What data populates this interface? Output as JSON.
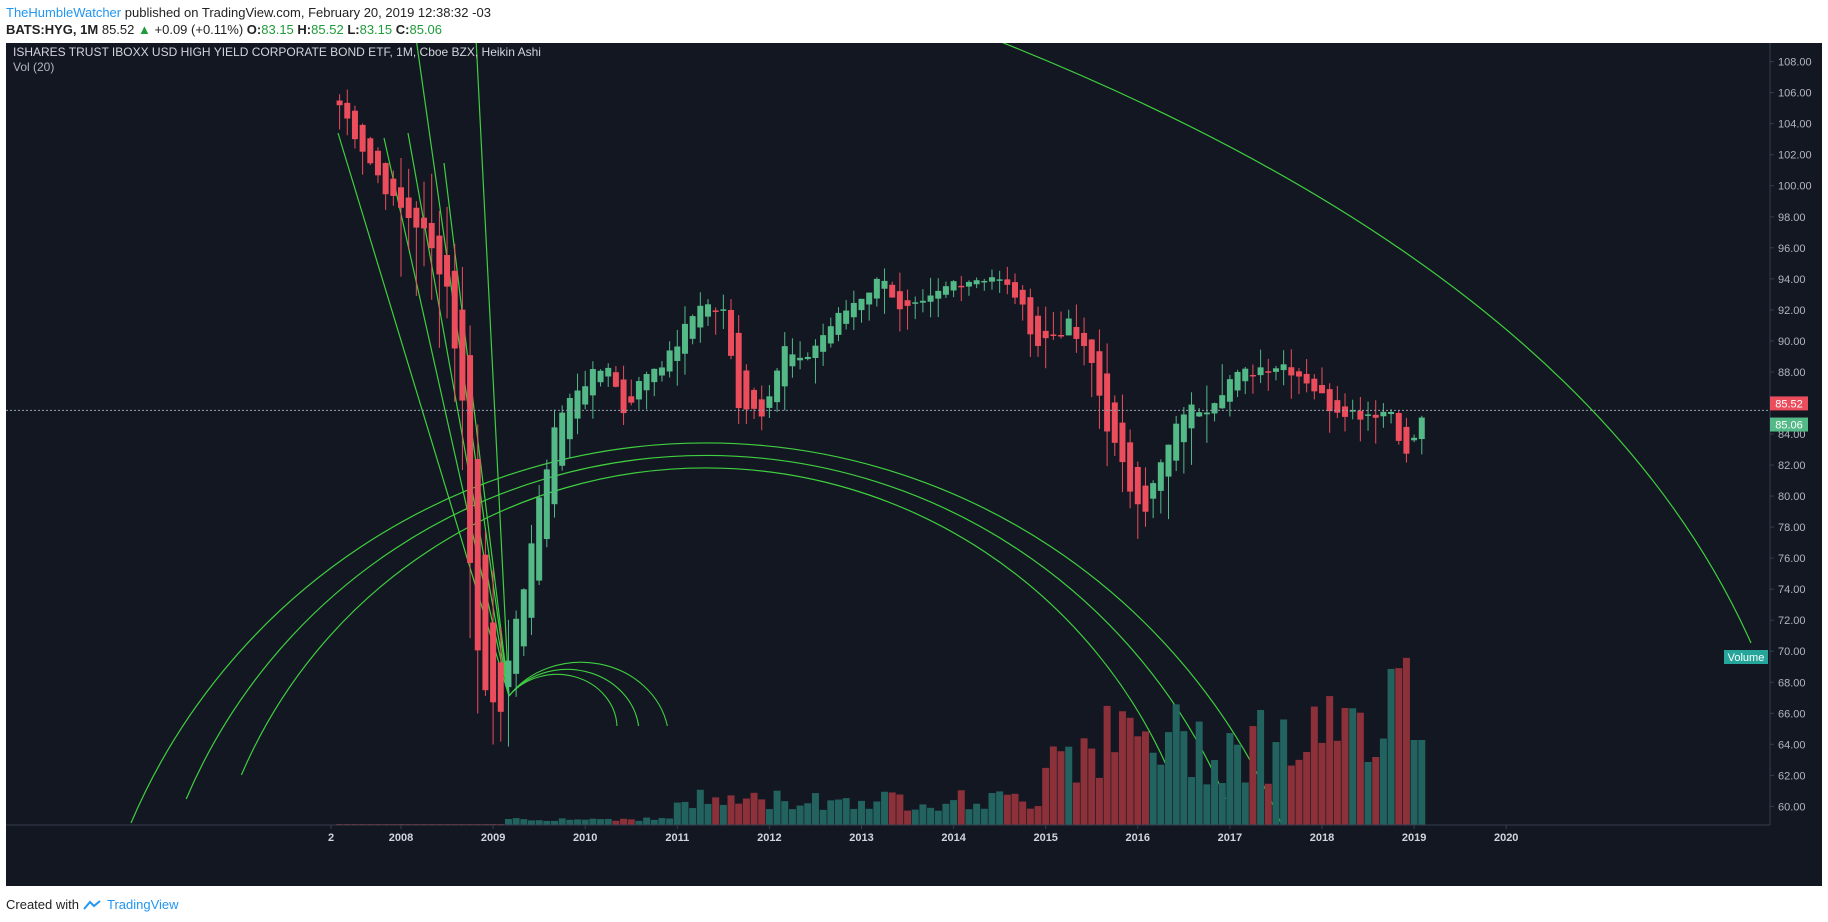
{
  "header": {
    "author": "TheHumbleWatcher",
    "published_text": "published on TradingView.com, February 20, 2019 12:38:32 -03",
    "symbol": "BATS:HYG, 1M",
    "last": "85.52",
    "change": "+0.09 (+0.11%)",
    "o_label": "O:",
    "o_value": "83.15",
    "h_label": "H:",
    "h_value": "85.52",
    "l_label": "L:",
    "l_value": "83.15",
    "c_label": "C:",
    "c_value": "85.06"
  },
  "chart_title": "ISHARES TRUST IBOXX USD HIGH YIELD CORPORATE BOND ETF, 1M, Cboe BZX, Heikin Ashi",
  "indicator_label": "Vol (20)",
  "price_tag_current": "85.52",
  "price_tag_close": "85.06",
  "volume_tag": "Volume",
  "footer": {
    "created_with": "Created with",
    "brand": "TradingView"
  },
  "colors": {
    "background": "#131722",
    "up": "#53b987",
    "down": "#eb4d5c",
    "vol_up": "#22625f",
    "vol_down": "#8c3039",
    "drawing": "#3fcf3f"
  },
  "chart_data": {
    "type": "candlestick",
    "title": "ISHARES TRUST IBOXX USD HIGH YIELD CORPORATE BOND ETF, 1M, Cboe BZX, Heikin Ashi",
    "y_axis": {
      "ticks": [
        "60.00",
        "62.00",
        "64.00",
        "66.00",
        "68.00",
        "70.00",
        "72.00",
        "74.00",
        "76.00",
        "78.00",
        "80.00",
        "82.00",
        "84.00",
        "86.00",
        "88.00",
        "90.00",
        "92.00",
        "94.00",
        "96.00",
        "98.00",
        "100.00",
        "102.00",
        "104.00",
        "106.00",
        "108.00"
      ],
      "range": [
        58.8,
        109.2
      ]
    },
    "x_axis": {
      "ticks": [
        "2",
        "2008",
        "2009",
        "2010",
        "2011",
        "2012",
        "2013",
        "2014",
        "2015",
        "2016",
        "2017",
        "2018",
        "2019",
        "2020"
      ]
    },
    "series": [
      {
        "name": "HYG (Heikin Ashi, monthly)",
        "anchors": [
          [
            "2007-05",
            105.2
          ],
          [
            "2007-09",
            101.5
          ],
          [
            "2007-12",
            99.0
          ],
          [
            "2008-04",
            97.0
          ],
          [
            "2008-07",
            93.5
          ],
          [
            "2008-09",
            86.0
          ],
          [
            "2008-10",
            76.0
          ],
          [
            "2008-11",
            70.0
          ],
          [
            "2008-12",
            67.5
          ],
          [
            "2009-02",
            66.5
          ],
          [
            "2009-03",
            69.0
          ],
          [
            "2009-06",
            77.0
          ],
          [
            "2009-09",
            84.5
          ],
          [
            "2009-12",
            87.0
          ],
          [
            "2010-04",
            88.5
          ],
          [
            "2010-06",
            85.5
          ],
          [
            "2010-09",
            88.0
          ],
          [
            "2010-12",
            89.0
          ],
          [
            "2011-04",
            92.5
          ],
          [
            "2011-07",
            91.8
          ],
          [
            "2011-09",
            86.0
          ],
          [
            "2011-12",
            85.5
          ],
          [
            "2012-03",
            89.5
          ],
          [
            "2012-05",
            88.5
          ],
          [
            "2012-09",
            91.0
          ],
          [
            "2012-12",
            92.5
          ],
          [
            "2013-04",
            94.2
          ],
          [
            "2013-06",
            91.8
          ],
          [
            "2013-09",
            92.2
          ],
          [
            "2014-01",
            93.8
          ],
          [
            "2014-06",
            94.2
          ],
          [
            "2014-09",
            93.0
          ],
          [
            "2014-12",
            89.8
          ],
          [
            "2015-04",
            91.0
          ],
          [
            "2015-07",
            88.5
          ],
          [
            "2015-09",
            84.5
          ],
          [
            "2015-12",
            80.5
          ],
          [
            "2016-02",
            79.3
          ],
          [
            "2016-04",
            82.0
          ],
          [
            "2016-07",
            85.5
          ],
          [
            "2016-10",
            85.8
          ],
          [
            "2017-01",
            87.5
          ],
          [
            "2017-05",
            88.3
          ],
          [
            "2017-08",
            88.5
          ],
          [
            "2017-11",
            87.5
          ],
          [
            "2018-02",
            85.8
          ],
          [
            "2018-06",
            85.3
          ],
          [
            "2018-10",
            85.5
          ],
          [
            "2018-12",
            82.5
          ],
          [
            "2019-01",
            83.8
          ],
          [
            "2019-02",
            85.06
          ]
        ]
      },
      {
        "name": "Vol (20)",
        "note": "volume histogram, relative scale"
      }
    ],
    "current_price": 85.52,
    "close_price": 85.06
  }
}
